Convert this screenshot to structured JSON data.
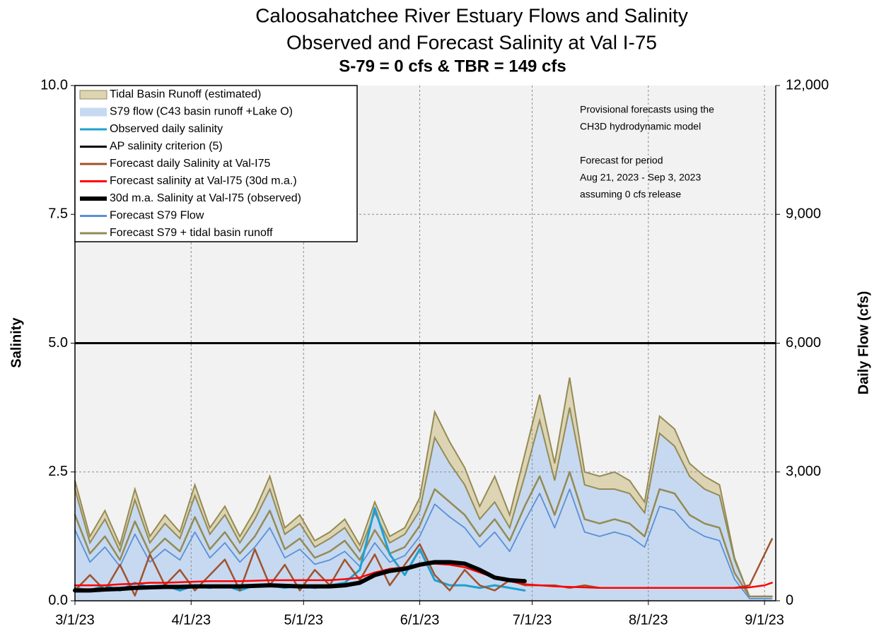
{
  "chart_data": {
    "type": "line",
    "title": "Caloosahatchee River Estuary Flows and Salinity",
    "subtitle": "Observed and Forecast Salinity at Val I-75",
    "subtitle2": "S-79 = 0 cfs & TBR =  149 cfs",
    "ylabel": "Salinity",
    "y2label": "Daily Flow (cfs)",
    "annotation": [
      "Provisional forecasts using the",
      "CH3D hydrodynamic model",
      "Forecast for period",
      "Aug 21, 2023 - Sep 3, 2023",
      "assuming 0 cfs release"
    ],
    "grid": true,
    "stacked_areas": true,
    "legend": "upper left",
    "xlim": [
      "2023-03-01",
      "2023-09-04"
    ],
    "xticks": [
      {
        "value": "2023-03-01",
        "label": "3/1/23"
      },
      {
        "value": "2023-04-01",
        "label": "4/1/23"
      },
      {
        "value": "2023-05-01",
        "label": "5/1/23"
      },
      {
        "value": "2023-06-01",
        "label": "6/1/23"
      },
      {
        "value": "2023-07-01",
        "label": "7/1/23"
      },
      {
        "value": "2023-08-01",
        "label": "8/1/23"
      },
      {
        "value": "2023-09-01",
        "label": "9/1/23"
      }
    ],
    "ylim": [
      0,
      10
    ],
    "yticks": [
      {
        "value": 0,
        "label": "0.0"
      },
      2.5,
      {
        "value": 5,
        "label": "5.0"
      },
      7.5,
      {
        "value": 10,
        "label": "10.0"
      }
    ],
    "y2lim": [
      0,
      12000
    ],
    "y2ticks": [
      0,
      {
        "value": 3000,
        "label": "3,000"
      },
      {
        "value": 6000,
        "label": "6,000"
      },
      {
        "value": 9000,
        "label": "9,000"
      },
      {
        "value": 12000,
        "label": "12,000"
      }
    ],
    "x": [
      "2023-03-01",
      "2023-03-05",
      "2023-03-09",
      "2023-03-13",
      "2023-03-17",
      "2023-03-21",
      "2023-03-25",
      "2023-03-29",
      "2023-04-02",
      "2023-04-06",
      "2023-04-10",
      "2023-04-14",
      "2023-04-18",
      "2023-04-22",
      "2023-04-26",
      "2023-04-30",
      "2023-05-04",
      "2023-05-08",
      "2023-05-12",
      "2023-05-16",
      "2023-05-20",
      "2023-05-24",
      "2023-05-28",
      "2023-06-01",
      "2023-06-05",
      "2023-06-09",
      "2023-06-13",
      "2023-06-17",
      "2023-06-21",
      "2023-06-25",
      "2023-06-29",
      "2023-07-03",
      "2023-07-07",
      "2023-07-11",
      "2023-07-15",
      "2023-07-19",
      "2023-07-23",
      "2023-07-27",
      "2023-07-31",
      "2023-08-04",
      "2023-08-08",
      "2023-08-12",
      "2023-08-16",
      "2023-08-20",
      "2023-08-24",
      "2023-08-28",
      "2023-09-01",
      "2023-09-03"
    ],
    "series": [
      {
        "name": "Tidal Basin Runoff (estimated)",
        "kind": "area",
        "axis": "y2",
        "color": "#ddd4b4",
        "values": [
          200,
          150,
          200,
          150,
          250,
          150,
          200,
          150,
          250,
          150,
          200,
          150,
          200,
          300,
          150,
          200,
          150,
          150,
          200,
          150,
          250,
          150,
          150,
          300,
          600,
          500,
          400,
          300,
          600,
          300,
          500,
          600,
          400,
          700,
          300,
          300,
          400,
          300,
          250,
          400,
          400,
          300,
          300,
          250,
          50,
          0,
          0,
          0
        ]
      },
      {
        "name": "S79 flow (C43 basin runoff +Lake O)",
        "kind": "area",
        "axis": "y2",
        "color": "#c6d9f0",
        "values": [
          2600,
          1350,
          1900,
          1150,
          2350,
          1350,
          1800,
          1450,
          2450,
          1550,
          2000,
          1350,
          1900,
          2600,
          1550,
          1800,
          1250,
          1450,
          1700,
          1150,
          2050,
          1350,
          1550,
          2100,
          3800,
          3200,
          2700,
          1900,
          2300,
          1700,
          2900,
          4200,
          2800,
          4500,
          2700,
          2600,
          2600,
          2500,
          2050,
          3900,
          3600,
          2900,
          2600,
          2450,
          950,
          100,
          100,
          100
        ]
      },
      {
        "name": "Observed daily salinity",
        "kind": "line",
        "color": "#1fa0d0",
        "values": [
          0.25,
          0.2,
          0.3,
          0.2,
          0.35,
          0.25,
          0.3,
          0.2,
          0.3,
          0.25,
          0.3,
          0.2,
          0.3,
          0.3,
          0.25,
          0.3,
          0.25,
          0.3,
          0.35,
          0.6,
          1.8,
          0.9,
          0.5,
          1.0,
          0.4,
          0.3,
          0.3,
          0.25,
          0.3,
          0.25,
          0.2,
          null,
          null,
          null,
          null,
          null,
          null,
          null,
          null,
          null,
          null,
          null,
          null,
          null,
          null,
          null,
          null,
          null
        ]
      },
      {
        "name": "AP salinity criterion (5)",
        "kind": "hline",
        "color": "#000000",
        "value": 5
      },
      {
        "name": "Forecast daily Salinity at Val-I75",
        "kind": "line",
        "color": "#a0522d",
        "values": [
          0.2,
          0.5,
          0.2,
          0.7,
          0.1,
          0.9,
          0.3,
          0.6,
          0.2,
          0.5,
          0.8,
          0.2,
          1.0,
          0.3,
          0.7,
          0.2,
          0.6,
          0.3,
          0.8,
          0.4,
          0.9,
          0.3,
          0.7,
          1.1,
          0.5,
          0.2,
          0.6,
          0.3,
          0.2,
          0.4,
          0.3,
          0.3,
          0.3,
          0.25,
          0.3,
          0.25,
          0.25,
          0.25,
          0.25,
          0.25,
          0.25,
          0.25,
          0.25,
          0.25,
          0.25,
          0.3,
          0.9,
          1.2
        ]
      },
      {
        "name": "Forecast salinity at Val-I75 (30d m.a.)",
        "kind": "line",
        "color": "#ff0000",
        "values": [
          0.3,
          0.3,
          0.3,
          0.32,
          0.33,
          0.35,
          0.35,
          0.36,
          0.37,
          0.38,
          0.38,
          0.38,
          0.39,
          0.4,
          0.4,
          0.4,
          0.4,
          0.4,
          0.42,
          0.45,
          0.55,
          0.62,
          0.65,
          0.7,
          0.72,
          0.7,
          0.65,
          0.55,
          0.45,
          0.38,
          0.32,
          0.3,
          0.28,
          0.27,
          0.26,
          0.25,
          0.25,
          0.25,
          0.25,
          0.25,
          0.25,
          0.25,
          0.25,
          0.25,
          0.25,
          0.26,
          0.3,
          0.35
        ]
      },
      {
        "name": "30d m.a. Salinity at Val-I75 (observed)",
        "kind": "line",
        "color": "#000000",
        "values": [
          0.2,
          0.2,
          0.22,
          0.23,
          0.25,
          0.26,
          0.27,
          0.27,
          0.28,
          0.28,
          0.28,
          0.28,
          0.29,
          0.3,
          0.29,
          0.28,
          0.28,
          0.28,
          0.3,
          0.35,
          0.5,
          0.58,
          0.62,
          0.7,
          0.75,
          0.75,
          0.72,
          0.6,
          0.45,
          0.4,
          0.38,
          null,
          null,
          null,
          null,
          null,
          null,
          null,
          null,
          null,
          null,
          null,
          null,
          null,
          null,
          null,
          null,
          null
        ]
      },
      {
        "name": "Forecast S79 Flow",
        "kind": "line",
        "axis": "y2",
        "color": "#5b8fd6",
        "values": [
          1650,
          900,
          1250,
          800,
          1550,
          900,
          1200,
          950,
          1600,
          1000,
          1350,
          900,
          1250,
          1700,
          1000,
          1200,
          850,
          950,
          1150,
          800,
          1350,
          900,
          1050,
          1500,
          2250,
          1950,
          1700,
          1250,
          1600,
          1150,
          1850,
          2500,
          1700,
          2600,
          1600,
          1500,
          1600,
          1500,
          1250,
          2200,
          2100,
          1700,
          1500,
          1400,
          500,
          50,
          50,
          50
        ]
      },
      {
        "name": "Forecast S79 + tidal basin runoff",
        "kind": "line",
        "axis": "y2",
        "color": "#948a54",
        "values": [
          2000,
          1100,
          1500,
          950,
          1850,
          1100,
          1450,
          1150,
          1950,
          1200,
          1600,
          1100,
          1500,
          2100,
          1200,
          1450,
          1000,
          1150,
          1400,
          950,
          1650,
          1100,
          1250,
          1750,
          2600,
          2300,
          2000,
          1500,
          1900,
          1400,
          2200,
          2900,
          2000,
          3000,
          1900,
          1800,
          1900,
          1800,
          1500,
          2600,
          2500,
          2000,
          1800,
          1700,
          650,
          100,
          100,
          100
        ]
      }
    ]
  }
}
